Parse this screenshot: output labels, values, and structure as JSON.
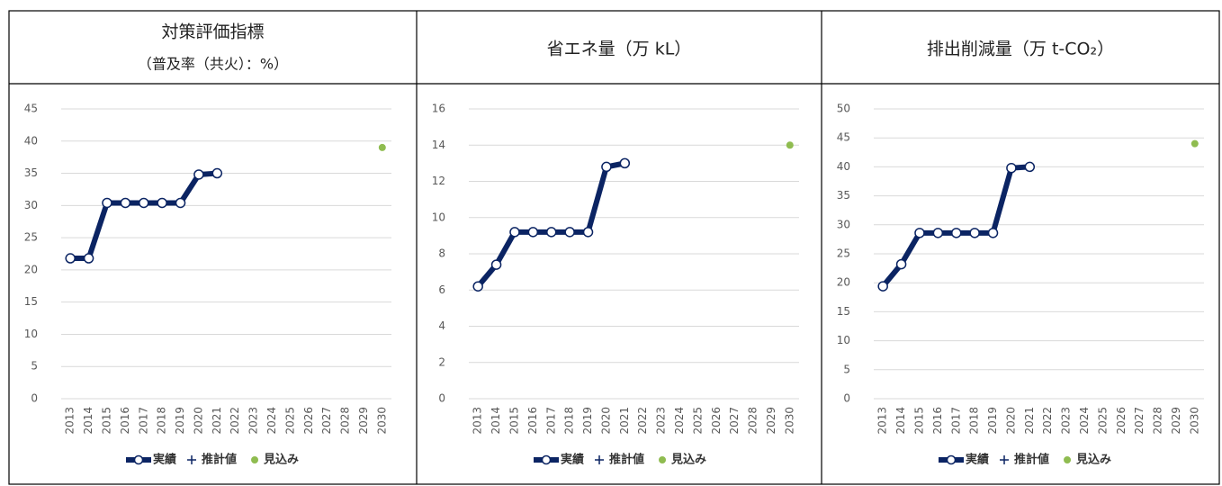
{
  "chart_data": [
    {
      "type": "line",
      "title": "対策評価指標",
      "subtitle": "（普及率（共火）：%）",
      "categories": [
        "2013",
        "2014",
        "2015",
        "2016",
        "2017",
        "2018",
        "2019",
        "2020",
        "2021",
        "2022",
        "2023",
        "2024",
        "2025",
        "2026",
        "2027",
        "2028",
        "2029",
        "2030"
      ],
      "series": [
        {
          "name": "実績",
          "color": "#0b2463",
          "values": [
            21.8,
            21.8,
            30.4,
            30.4,
            30.4,
            30.4,
            30.4,
            34.8,
            35.0,
            null,
            null,
            null,
            null,
            null,
            null,
            null,
            null,
            null
          ]
        },
        {
          "name": "推計値",
          "color": "#0b2463",
          "values": [
            null,
            null,
            null,
            null,
            null,
            null,
            null,
            null,
            null,
            null,
            null,
            null,
            null,
            null,
            null,
            null,
            null,
            null
          ]
        },
        {
          "name": "見込み",
          "color": "#8fbc50",
          "values": [
            null,
            null,
            null,
            null,
            null,
            null,
            null,
            null,
            null,
            null,
            null,
            null,
            null,
            null,
            null,
            null,
            null,
            39.0
          ]
        }
      ],
      "ylim": [
        0,
        45
      ],
      "yticks": [
        0,
        5,
        10,
        15,
        20,
        25,
        30,
        35,
        40,
        45
      ],
      "grid": true,
      "legend": "bottom"
    },
    {
      "type": "line",
      "title": "省エネ量（万 kL）",
      "categories": [
        "2013",
        "2014",
        "2015",
        "2016",
        "2017",
        "2018",
        "2019",
        "2020",
        "2021",
        "2022",
        "2023",
        "2024",
        "2025",
        "2026",
        "2027",
        "2028",
        "2029",
        "2030"
      ],
      "series": [
        {
          "name": "実績",
          "color": "#0b2463",
          "values": [
            6.2,
            7.4,
            9.2,
            9.2,
            9.2,
            9.2,
            9.2,
            12.8,
            13.0,
            null,
            null,
            null,
            null,
            null,
            null,
            null,
            null,
            null
          ]
        },
        {
          "name": "推計値",
          "color": "#0b2463",
          "values": [
            null,
            null,
            null,
            null,
            null,
            null,
            null,
            null,
            null,
            null,
            null,
            null,
            null,
            null,
            null,
            null,
            null,
            null
          ]
        },
        {
          "name": "見込み",
          "color": "#8fbc50",
          "values": [
            null,
            null,
            null,
            null,
            null,
            null,
            null,
            null,
            null,
            null,
            null,
            null,
            null,
            null,
            null,
            null,
            null,
            14.0
          ]
        }
      ],
      "ylim": [
        0,
        16
      ],
      "yticks": [
        0,
        2,
        4,
        6,
        8,
        10,
        12,
        14,
        16
      ],
      "grid": true,
      "legend": "bottom"
    },
    {
      "type": "line",
      "title": "排出削減量（万 t-CO₂）",
      "categories": [
        "2013",
        "2014",
        "2015",
        "2016",
        "2017",
        "2018",
        "2019",
        "2020",
        "2021",
        "2022",
        "2023",
        "2024",
        "2025",
        "2026",
        "2027",
        "2028",
        "2029",
        "2030"
      ],
      "series": [
        {
          "name": "実績",
          "color": "#0b2463",
          "values": [
            19.4,
            23.2,
            28.6,
            28.6,
            28.6,
            28.6,
            28.6,
            39.8,
            40.0,
            null,
            null,
            null,
            null,
            null,
            null,
            null,
            null,
            null
          ]
        },
        {
          "name": "推計値",
          "color": "#0b2463",
          "values": [
            null,
            null,
            null,
            null,
            null,
            null,
            null,
            null,
            null,
            null,
            null,
            null,
            null,
            null,
            null,
            null,
            null,
            null
          ]
        },
        {
          "name": "見込み",
          "color": "#8fbc50",
          "values": [
            null,
            null,
            null,
            null,
            null,
            null,
            null,
            null,
            null,
            null,
            null,
            null,
            null,
            null,
            null,
            null,
            null,
            44.0
          ]
        }
      ],
      "ylim": [
        0,
        50
      ],
      "yticks": [
        0,
        5,
        10,
        15,
        20,
        25,
        30,
        35,
        40,
        45,
        50
      ],
      "grid": true,
      "legend": "bottom"
    }
  ]
}
